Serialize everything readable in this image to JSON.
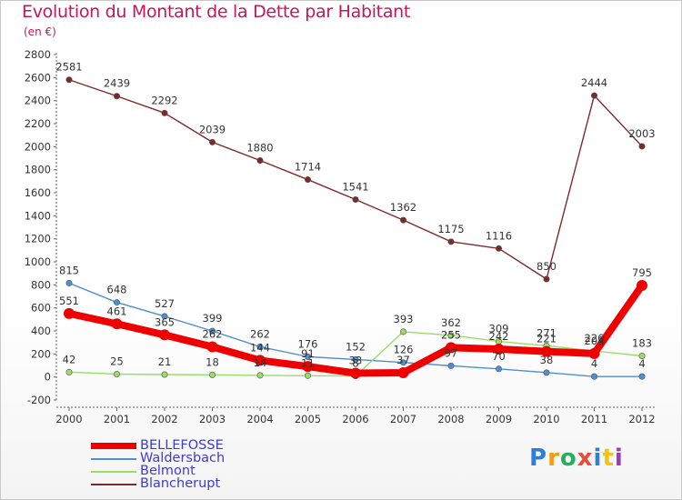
{
  "title": "Evolution du Montant de la Dette par Habitant",
  "subtitle": "(en €)",
  "logo_text": "Proxiti",
  "chart_data": {
    "type": "line",
    "x": [
      "2000",
      "2001",
      "2002",
      "2003",
      "2004",
      "2005",
      "2006",
      "2007",
      "2008",
      "2009",
      "2010",
      "2011",
      "2012"
    ],
    "ylim": [
      -200,
      2800
    ],
    "yticks": [
      -200,
      0,
      200,
      400,
      600,
      800,
      1000,
      1200,
      1400,
      1600,
      1800,
      2000,
      2200,
      2400,
      2600,
      2800
    ],
    "grid": false,
    "legend_position": "bottom-left",
    "series": [
      {
        "name": "BELLEFOSSE",
        "color": "#ee0000",
        "values": [
          551,
          461,
          365,
          262,
          144,
          91,
          33,
          37,
          255,
          242,
          221,
          204,
          795
        ],
        "labels": [
          "551",
          "461",
          "365",
          "262",
          "144",
          "91",
          "33",
          "37",
          "255",
          "242",
          "221",
          "204",
          "795"
        ]
      },
      {
        "name": "Waldersbach",
        "color": "#4f8fd0",
        "values": [
          815,
          648,
          527,
          399,
          262,
          176,
          152,
          126,
          97,
          70,
          38,
          4,
          4
        ],
        "labels": [
          "815",
          "648",
          "527",
          "399",
          "262",
          "176",
          "152",
          "126",
          "97",
          "70",
          "38",
          "4",
          "4"
        ]
      },
      {
        "name": "Belmont",
        "color": "#99dd66",
        "values": [
          42,
          25,
          21,
          18,
          14,
          11,
          8,
          393,
          362,
          309,
          271,
          226,
          183
        ],
        "labels": [
          "42",
          "25",
          "21",
          "18",
          "14",
          "11",
          "8",
          "393",
          "362",
          "309",
          "271",
          "226",
          "183"
        ]
      },
      {
        "name": "Blancherupt",
        "color": "#7a2a2a",
        "values": [
          2581,
          2439,
          2292,
          2039,
          1880,
          1714,
          1541,
          1362,
          1175,
          1116,
          850,
          2444,
          2003
        ],
        "labels": [
          "2581",
          "2439",
          "2292",
          "2039",
          "1880",
          "1714",
          "1541",
          "1362",
          "1175",
          "1116",
          "850",
          "2444",
          "2003"
        ]
      }
    ]
  }
}
